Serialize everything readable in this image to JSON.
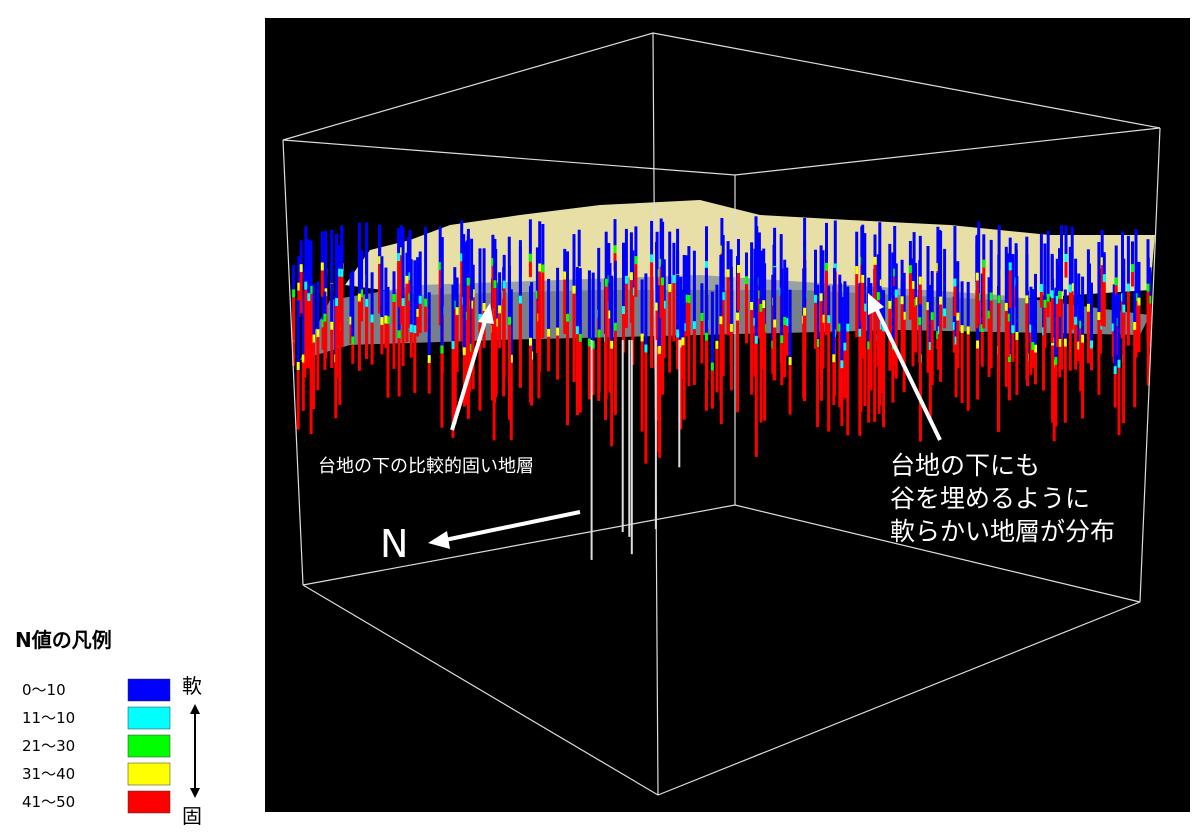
{
  "annotations": {
    "left": "台地の下の比較的固い地層",
    "right": [
      "台地の下にも",
      "谷を埋めるように",
      "軟らかい地層が分布"
    ],
    "north": "N"
  },
  "legend": {
    "title": "N値の凡例",
    "soft": "軟",
    "hard": "固",
    "items": [
      {
        "label": "0～10",
        "color": "#0000ff"
      },
      {
        "label": "11～10",
        "color": "#00ffff"
      },
      {
        "label": "21～30",
        "color": "#00ff00"
      },
      {
        "label": "31～40",
        "color": "#ffff00"
      },
      {
        "label": "41～50",
        "color": "#ff0000"
      }
    ]
  }
}
